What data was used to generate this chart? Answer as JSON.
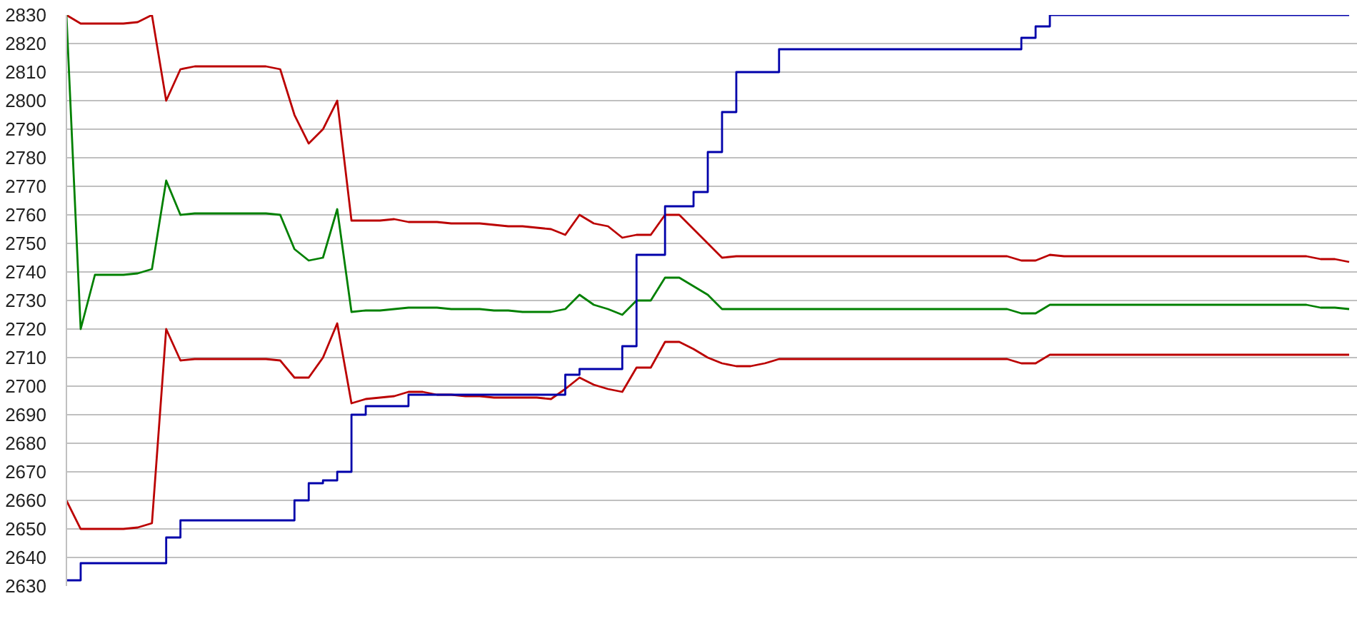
{
  "chart_data": {
    "type": "line",
    "categories": [
      null,
      null,
      null,
      null,
      null,
      null,
      null,
      null,
      null,
      null,
      null,
      null,
      null,
      null,
      null,
      null,
      null,
      null,
      null,
      null,
      null,
      null,
      null,
      null,
      null,
      null,
      null,
      null,
      null,
      null,
      null,
      null,
      null,
      null,
      null,
      null,
      null,
      null,
      null,
      null,
      null,
      null,
      null,
      null,
      null,
      null,
      null,
      null,
      null,
      null,
      null,
      null,
      null,
      null,
      null,
      null,
      null,
      null,
      null,
      null,
      null,
      null,
      null,
      null,
      null,
      null,
      null,
      null,
      null,
      null,
      null,
      null,
      null,
      null,
      null,
      null,
      null,
      null,
      null,
      null,
      null,
      null,
      null,
      null,
      null,
      null,
      null,
      null,
      null,
      null,
      null
    ],
    "series": [
      {
        "color": "#bb0000",
        "values": [
          2830,
          2827,
          2827,
          2827,
          2827,
          2827.5,
          2830,
          2800,
          2811,
          2812,
          2812,
          2812,
          2812,
          2812,
          2812,
          2811,
          2795,
          2785,
          2790,
          2800,
          2758,
          2758,
          2758,
          2758.5,
          2757.5,
          2757.5,
          2757.5,
          2757,
          2757,
          2757,
          2756.5,
          2756,
          2756,
          2755.5,
          2755,
          2753,
          2760,
          2757,
          2756,
          2752,
          2753,
          2753,
          2760,
          2760,
          2755,
          2750,
          2745,
          2745.5,
          2745.5,
          2745.5,
          2745.5,
          2745.5,
          2745.5,
          2745.5,
          2745.5,
          2745.5,
          2745.5,
          2745.5,
          2745.5,
          2745.5,
          2745.5,
          2745.5,
          2745.5,
          2745.5,
          2745.5,
          2745.5,
          2745.5,
          2744,
          2744,
          2746,
          2745.5,
          2745.5,
          2745.5,
          2745.5,
          2745.5,
          2745.5,
          2745.5,
          2745.5,
          2745.5,
          2745.5,
          2745.5,
          2745.5,
          2745.5,
          2745.5,
          2745.5,
          2745.5,
          2745.5,
          2745.5,
          2744.5,
          2744.5,
          2743.5
        ]
      },
      {
        "color": "#008000",
        "values": [
          2830,
          2720,
          2739,
          2739,
          2739,
          2739.5,
          2741,
          2772,
          2760,
          2760.5,
          2760.5,
          2760.5,
          2760.5,
          2760.5,
          2760.5,
          2760,
          2748,
          2744,
          2745,
          2762,
          2726,
          2726.5,
          2726.5,
          2727,
          2727.5,
          2727.5,
          2727.5,
          2727,
          2727,
          2727,
          2726.5,
          2726.5,
          2726,
          2726,
          2726,
          2727,
          2732,
          2728.5,
          2727,
          2725,
          2730,
          2730,
          2738,
          2738,
          2735,
          2732,
          2727,
          2727,
          2727,
          2727,
          2727,
          2727,
          2727,
          2727,
          2727,
          2727,
          2727,
          2727,
          2727,
          2727,
          2727,
          2727,
          2727,
          2727,
          2727,
          2727,
          2727,
          2725.5,
          2725.5,
          2728.5,
          2728.5,
          2728.5,
          2728.5,
          2728.5,
          2728.5,
          2728.5,
          2728.5,
          2728.5,
          2728.5,
          2728.5,
          2728.5,
          2728.5,
          2728.5,
          2728.5,
          2728.5,
          2728.5,
          2728.5,
          2728.5,
          2727.5,
          2727.5,
          2727
        ]
      },
      {
        "color": "#bb0000",
        "values": [
          2660,
          2650,
          2650,
          2650,
          2650,
          2650.5,
          2652,
          2720,
          2709,
          2709.5,
          2709.5,
          2709.5,
          2709.5,
          2709.5,
          2709.5,
          2709,
          2703,
          2703,
          2710,
          2722,
          2694,
          2695.5,
          2696,
          2696.5,
          2698,
          2698,
          2697,
          2697,
          2696.5,
          2696.5,
          2696,
          2696,
          2696,
          2696,
          2695.5,
          2699,
          2703,
          2700.5,
          2699,
          2698,
          2706.5,
          2706.5,
          2715.5,
          2715.5,
          2713,
          2710,
          2708,
          2707,
          2707,
          2708,
          2709.5,
          2709.5,
          2709.5,
          2709.5,
          2709.5,
          2709.5,
          2709.5,
          2709.5,
          2709.5,
          2709.5,
          2709.5,
          2709.5,
          2709.5,
          2709.5,
          2709.5,
          2709.5,
          2709.5,
          2708,
          2708,
          2711,
          2711,
          2711,
          2711,
          2711,
          2711,
          2711,
          2711,
          2711,
          2711,
          2711,
          2711,
          2711,
          2711,
          2711,
          2711,
          2711,
          2711,
          2711,
          2711,
          2711,
          2711
        ]
      },
      {
        "type": "step",
        "color": "#0000aa",
        "values": [
          2632,
          2638,
          2638,
          2638,
          2638,
          2638,
          2638,
          2647,
          2653,
          2653,
          2653,
          2653,
          2653,
          2653,
          2653,
          2653,
          2660,
          2666,
          2667,
          2670,
          2690,
          2693,
          2693,
          2693,
          2697,
          2697,
          2697,
          2697,
          2697,
          2697,
          2697,
          2697,
          2697,
          2697,
          2697,
          2704,
          2706,
          2706,
          2706,
          2714,
          2746,
          2746,
          2763,
          2763,
          2768,
          2782,
          2796,
          2810,
          2810,
          2810,
          2818,
          2818,
          2818,
          2818,
          2818,
          2818,
          2818,
          2818,
          2818,
          2818,
          2818,
          2818,
          2818,
          2818,
          2818,
          2818,
          2818,
          2822,
          2826,
          2830,
          2830,
          2830,
          2830,
          2830,
          2830,
          2830,
          2830,
          2830,
          2830,
          2830,
          2830,
          2830,
          2830,
          2830,
          2830,
          2830,
          2830,
          2830,
          2830,
          2830,
          2830
        ]
      }
    ],
    "ylim": [
      2630,
      2830
    ],
    "yticks": [
      2630,
      2640,
      2650,
      2660,
      2670,
      2680,
      2690,
      2700,
      2710,
      2720,
      2730,
      2740,
      2750,
      2760,
      2770,
      2780,
      2790,
      2800,
      2810,
      2820,
      2830
    ],
    "grid": "y",
    "tick_labels": "y"
  }
}
